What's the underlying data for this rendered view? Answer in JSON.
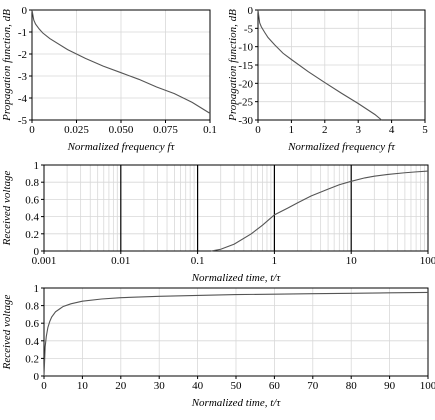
{
  "chart_data": [
    {
      "type": "line",
      "xlabel": "Normalized frequency fτ",
      "ylabel": "Propagation function, dB",
      "xlim": [
        0,
        0.1
      ],
      "ylim": [
        -5,
        0
      ],
      "x_ticks": [
        "0",
        "0.025",
        "0.050",
        "0.075",
        "0.1"
      ],
      "y_ticks": [
        "0",
        "-1",
        "-2",
        "-3",
        "-4",
        "-5"
      ],
      "grid": true,
      "series": [
        {
          "x": [
            0,
            0.001,
            0.002,
            0.004,
            0.006,
            0.01,
            0.02,
            0.03,
            0.04,
            0.05,
            0.06,
            0.07,
            0.08,
            0.09,
            0.1
          ],
          "y": [
            0,
            -0.46,
            -0.64,
            -0.86,
            -1.04,
            -1.3,
            -1.8,
            -2.2,
            -2.55,
            -2.85,
            -3.15,
            -3.5,
            -3.8,
            -4.2,
            -4.7
          ]
        }
      ]
    },
    {
      "type": "line",
      "xlabel": "Normalized frequency fτ",
      "ylabel": "Propagation function, dB",
      "xlim": [
        0,
        5
      ],
      "ylim": [
        -30,
        0
      ],
      "x_ticks": [
        "0",
        "1",
        "2",
        "3",
        "4",
        "5"
      ],
      "y_ticks": [
        "0",
        "-5",
        "-10",
        "-15",
        "-20",
        "-25",
        "-30"
      ],
      "grid": true,
      "series": [
        {
          "x": [
            0,
            0.05,
            0.1,
            0.2,
            0.3,
            0.5,
            0.75,
            1,
            1.5,
            2,
            2.5,
            3,
            3.5,
            3.7
          ],
          "y": [
            0,
            -3.5,
            -4.6,
            -6.1,
            -7.5,
            -9.5,
            -11.8,
            -13.5,
            -16.8,
            -19.8,
            -22.7,
            -25.5,
            -28.5,
            -30
          ]
        }
      ]
    },
    {
      "type": "line",
      "xlabel": "Normalized time, t/τ",
      "ylabel": "Received voltage",
      "xscale": "log",
      "xlim": [
        0.001,
        100
      ],
      "ylim": [
        0,
        1
      ],
      "x_ticks": [
        "0.001",
        "0.01",
        "0.1",
        "1",
        "10",
        "100"
      ],
      "y_ticks": [
        "0",
        "0.2",
        "0.4",
        "0.6",
        "0.8",
        "1"
      ],
      "grid": true,
      "series": [
        {
          "x": [
            0.15,
            0.2,
            0.3,
            0.5,
            0.7,
            1,
            1.5,
            2,
            3,
            5,
            7,
            10,
            15,
            20,
            30,
            50,
            70,
            100
          ],
          "y": [
            0,
            0.02,
            0.08,
            0.2,
            0.3,
            0.42,
            0.5,
            0.56,
            0.64,
            0.72,
            0.77,
            0.81,
            0.85,
            0.87,
            0.89,
            0.91,
            0.92,
            0.93
          ]
        }
      ]
    },
    {
      "type": "line",
      "xlabel": "Normalized time, t/τ",
      "ylabel": "Received voltage",
      "xlim": [
        0,
        100
      ],
      "ylim": [
        0,
        1
      ],
      "x_ticks": [
        "0",
        "10",
        "20",
        "30",
        "40",
        "50",
        "60",
        "70",
        "80",
        "90",
        "100"
      ],
      "y_ticks": [
        "0",
        "0.2",
        "0.4",
        "0.6",
        "0.8",
        "1"
      ],
      "grid": true,
      "series": [
        {
          "x": [
            0,
            0.3,
            0.6,
            1,
            1.5,
            2,
            3,
            4,
            5,
            7,
            10,
            15,
            20,
            30,
            40,
            50,
            60,
            70,
            80,
            90,
            100
          ],
          "y": [
            0,
            0.33,
            0.45,
            0.55,
            0.62,
            0.67,
            0.73,
            0.76,
            0.79,
            0.82,
            0.85,
            0.875,
            0.89,
            0.905,
            0.915,
            0.925,
            0.93,
            0.935,
            0.94,
            0.945,
            0.95
          ]
        }
      ]
    }
  ]
}
